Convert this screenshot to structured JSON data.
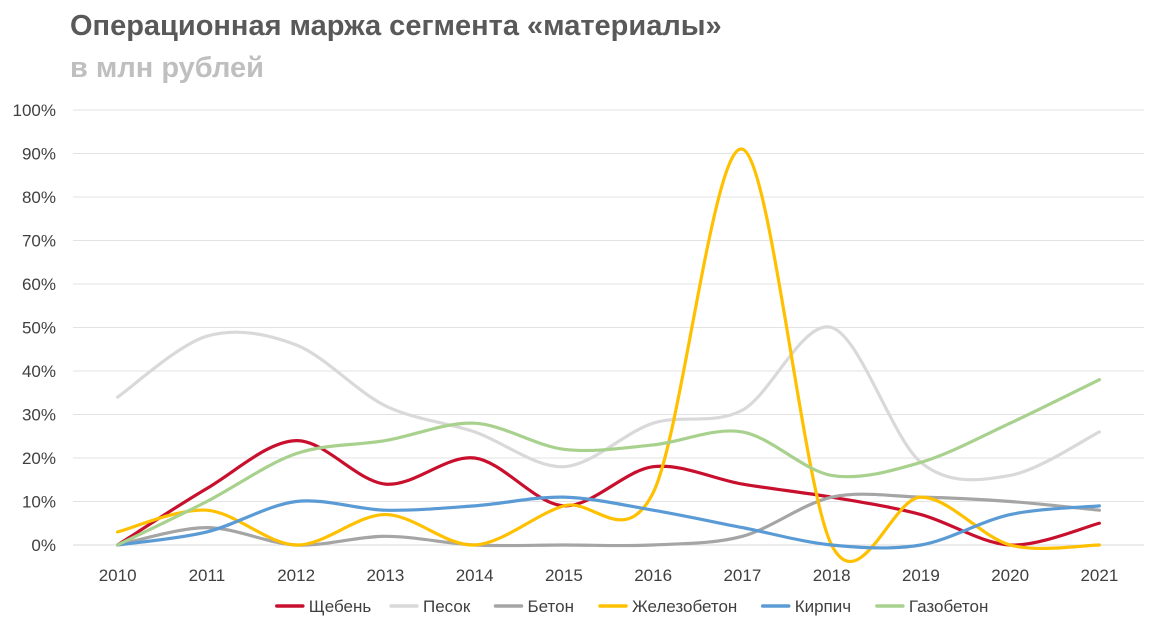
{
  "title": "Операционная маржа сегмента «материалы»",
  "subtitle": "в млн рублей",
  "chart_data": {
    "type": "line",
    "title": "Операционная маржа сегмента «материалы»",
    "subtitle": "в млн рублей",
    "xlabel": "",
    "ylabel": "",
    "categories": [
      "2010",
      "2011",
      "2012",
      "2013",
      "2014",
      "2015",
      "2016",
      "2017",
      "2018",
      "2019",
      "2020",
      "2021"
    ],
    "ylim": [
      0,
      100
    ],
    "yticks": [
      "0%",
      "10%",
      "20%",
      "30%",
      "40%",
      "50%",
      "60%",
      "70%",
      "80%",
      "90%",
      "100%"
    ],
    "grid": "horizontal",
    "legend_position": "bottom",
    "smooth": true,
    "series": [
      {
        "name": "Щебень",
        "color": "#c8102e",
        "values": [
          0,
          13,
          24,
          14,
          20,
          9,
          18,
          14,
          11,
          7,
          0,
          5
        ]
      },
      {
        "name": "Песок",
        "color": "#d9d9d9",
        "values": [
          34,
          48,
          46,
          32,
          26,
          18,
          28,
          31,
          50,
          19,
          16,
          26
        ]
      },
      {
        "name": "Бетон",
        "color": "#a5a5a5",
        "values": [
          0,
          4,
          0,
          2,
          0,
          0,
          0,
          2,
          11,
          11,
          10,
          8
        ]
      },
      {
        "name": "Железобетон",
        "color": "#ffc000",
        "values": [
          3,
          8,
          0,
          7,
          0,
          9,
          12,
          91,
          0,
          11,
          0,
          0
        ]
      },
      {
        "name": "Кирпич",
        "color": "#5b9bd5",
        "values": [
          0,
          3,
          10,
          8,
          9,
          11,
          8,
          4,
          0,
          0,
          7,
          9
        ]
      },
      {
        "name": "Газобетон",
        "color": "#a9d18e",
        "values": [
          0,
          10,
          21,
          24,
          28,
          22,
          23,
          26,
          16,
          19,
          28,
          38
        ]
      }
    ]
  }
}
